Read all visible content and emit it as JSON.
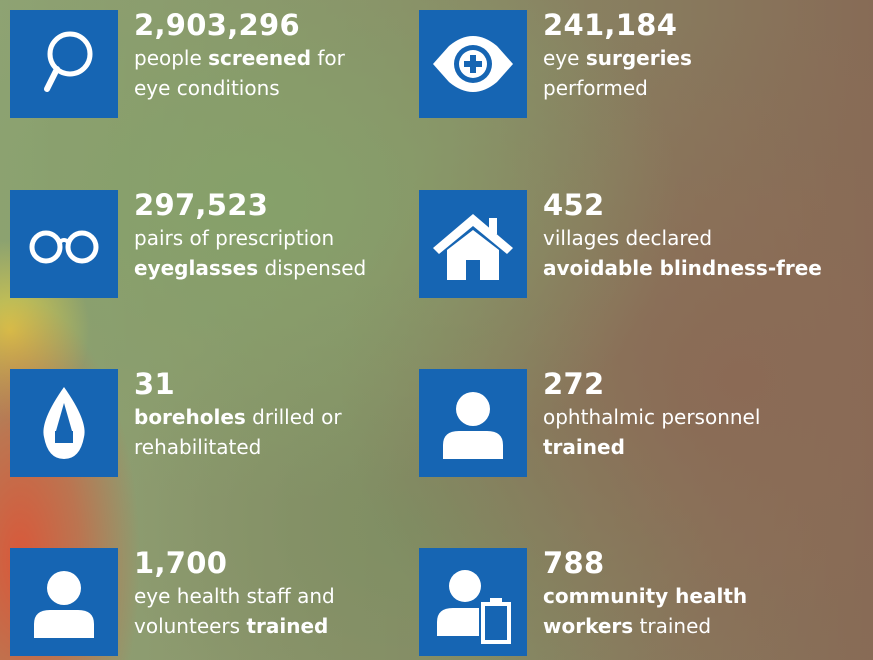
{
  "items": [
    {
      "number": "2,903,296",
      "lines": [
        [
          {
            "text": "people "
          },
          {
            "text": "screened",
            "bold": true
          },
          {
            "text": " for"
          }
        ],
        [
          {
            "text": "eye conditions"
          }
        ]
      ]
    },
    {
      "number": "241,184",
      "lines": [
        [
          {
            "text": "eye "
          },
          {
            "text": "surgeries",
            "bold": true
          }
        ],
        [
          {
            "text": "performed"
          }
        ]
      ]
    },
    {
      "number": "297,523",
      "lines": [
        [
          {
            "text": "pairs of prescription"
          }
        ],
        [
          {
            "text": "eyeglasses",
            "bold": true
          },
          {
            "text": " dispensed"
          }
        ]
      ]
    },
    {
      "number": "452",
      "lines": [
        [
          {
            "text": "villages declared"
          }
        ],
        [
          {
            "text": "avoidable blindness-free",
            "bold": true
          }
        ]
      ]
    },
    {
      "number": "31",
      "lines": [
        [
          {
            "text": "boreholes",
            "bold": true
          },
          {
            "text": " drilled or"
          }
        ],
        [
          {
            "text": "rehabilitated"
          }
        ]
      ]
    },
    {
      "number": "272",
      "lines": [
        [
          {
            "text": "ophthalmic personnel"
          }
        ],
        [
          {
            "text": "trained",
            "bold": true
          }
        ]
      ]
    },
    {
      "number": "1,700",
      "lines": [
        [
          {
            "text": "eye health staff and"
          }
        ],
        [
          {
            "text": "volunteers "
          },
          {
            "text": "trained",
            "bold": true
          }
        ]
      ]
    },
    {
      "number": "788",
      "lines": [
        [
          {
            "text": "community health",
            "bold": true
          }
        ],
        [
          {
            "text": "workers",
            "bold": true
          },
          {
            "text": " trained"
          }
        ]
      ]
    }
  ]
}
